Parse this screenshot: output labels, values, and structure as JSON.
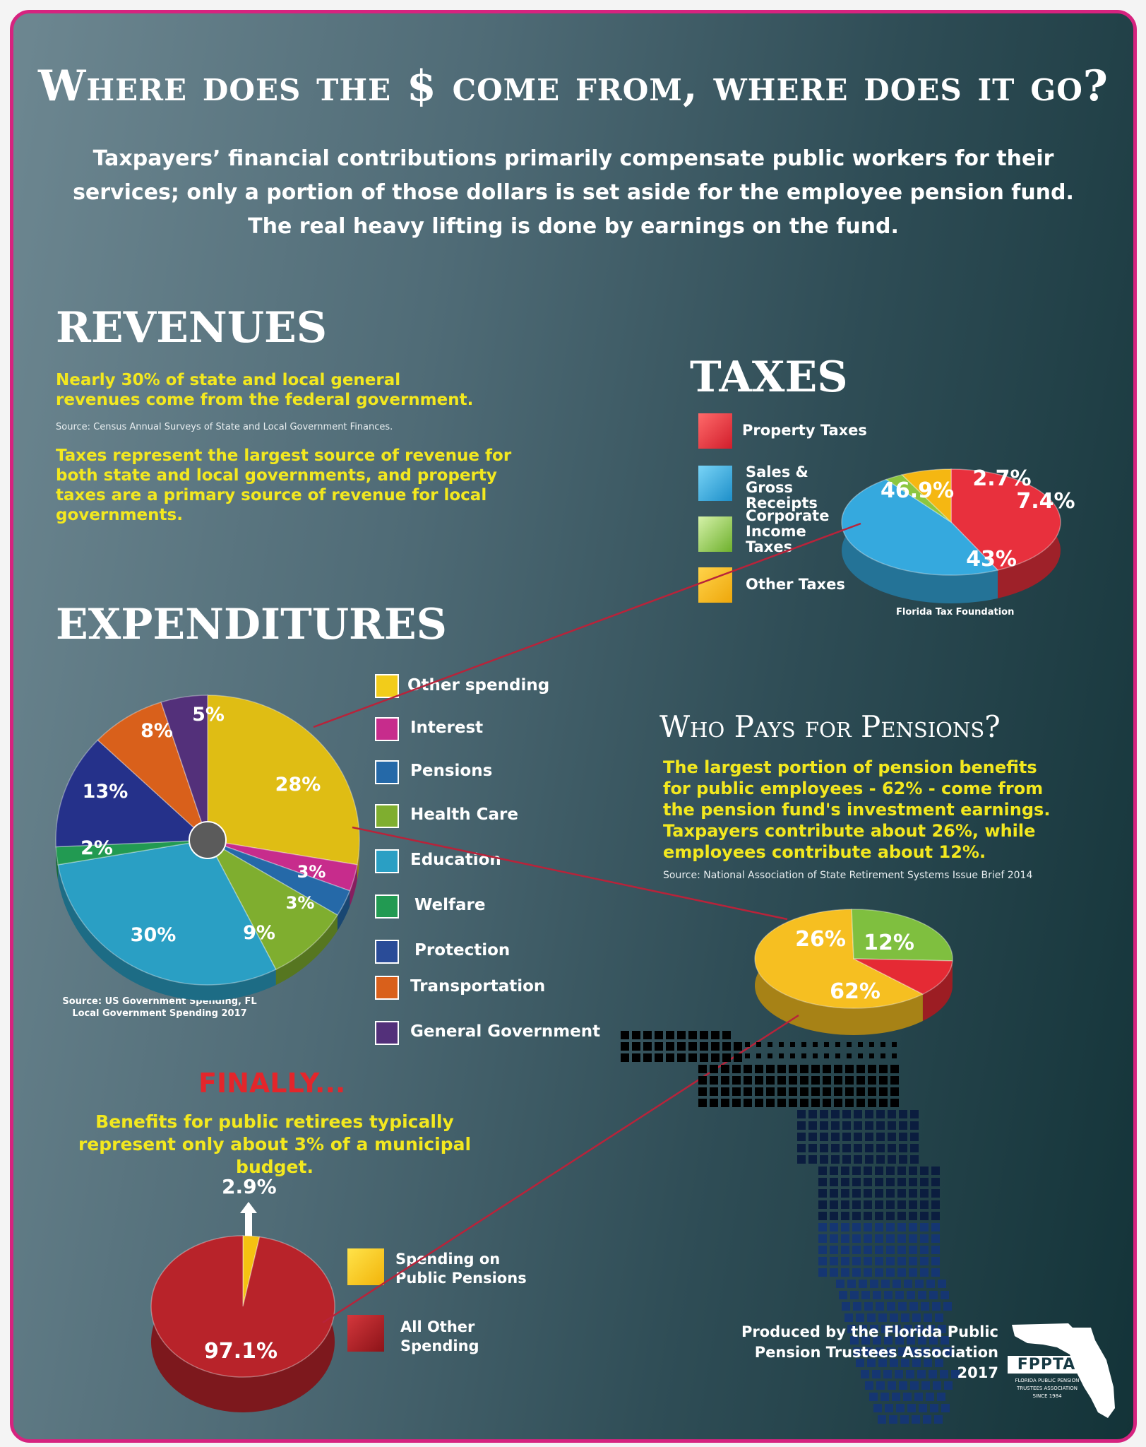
{
  "header": {
    "title": "Where does the $ come from, where does it go?",
    "intro": "Taxpayers’ financial contributions primarily compensate public workers for their services; only a portion of those dollars is set aside for the employee pension fund. The real heavy lifting is done by earnings on the fund."
  },
  "revenues": {
    "title": "REVENUES",
    "fact1": "Nearly 30% of state and local general revenues come from the federal government.",
    "source1": "Source: Census Annual Surveys of State and Local Government Finances.",
    "fact2": "Taxes represent the largest source of revenue for both state and local governments, and property taxes are a primary source of revenue for local governments."
  },
  "taxes": {
    "title": "TAXES",
    "source": "Florida Tax Foundation"
  },
  "expenditures": {
    "title": "EXPENDITURES",
    "source_label": "Source:",
    "source_rest": "US Government Spending, FL Local Government Spending 2017"
  },
  "pensions": {
    "title": "Who Pays for Pensions?",
    "fact": "The largest portion of pension benefits for public employees - 62% - come from the pension fund's investment earnings. Taxpayers contribute about 26%, while employees contribute about 12%.",
    "source": "Source: National Association of State Retirement Systems Issue Brief 2014"
  },
  "finally": {
    "heading": "FINALLY...",
    "fact": "Benefits for public retirees typically represent only about 3% of a municipal budget.",
    "callout": "2.9%"
  },
  "footer": {
    "produced_by": "Produced by the Florida Public Pension Trustees Association 2017",
    "logo_text": "FPPTA",
    "logo_sub1": "FLORIDA PUBLIC PENSION",
    "logo_sub2": "TRUSTEES ASSOCIATION",
    "logo_sub3": "SINCE 1984"
  },
  "colors": {
    "border": "#d6237f",
    "highlight_text": "#f3e81f",
    "finally_red": "#e3262b"
  },
  "chart_data": [
    {
      "id": "taxes",
      "type": "pie",
      "slices": [
        {
          "label": "Property Taxes",
          "value": 43,
          "display": "43%",
          "color": "#e8303d"
        },
        {
          "label": "Sales & Gross Receipts",
          "value": 46.9,
          "display": "46.9%",
          "color": "#35a9de"
        },
        {
          "label": "Corporate Income Taxes",
          "value": 2.7,
          "display": "2.7%",
          "color": "#8cc63f"
        },
        {
          "label": "Other Taxes",
          "value": 7.4,
          "display": "7.4%",
          "color": "#f5b712"
        }
      ]
    },
    {
      "id": "expenditures",
      "type": "pie",
      "slices": [
        {
          "label": "Other spending",
          "value": 28,
          "display": "28%",
          "color": "#dfbd14"
        },
        {
          "label": "Interest",
          "value": 3,
          "display": "3%",
          "color": "#c72c8c"
        },
        {
          "label": "Pensions",
          "value": 3,
          "display": "3%",
          "color": "#2569a8"
        },
        {
          "label": "Health Care",
          "value": 9,
          "display": "9%",
          "color": "#7fae2f"
        },
        {
          "label": "Education",
          "value": 30,
          "display": "30%",
          "color": "#2a9fc4"
        },
        {
          "label": "Welfare",
          "value": 2,
          "display": "2%",
          "color": "#229a52"
        },
        {
          "label": "Protection",
          "value": 13,
          "display": "13%",
          "color": "#25318a"
        },
        {
          "label": "Transportation",
          "value": 8,
          "display": "8%",
          "color": "#d9601b"
        },
        {
          "label": "General Government",
          "value": 5,
          "display": "5%",
          "color": "#53307a"
        }
      ]
    },
    {
      "id": "pension_sources",
      "type": "pie",
      "slices": [
        {
          "label": "Investment earnings",
          "value": 62,
          "display": "62%",
          "color": "#f6bf21"
        },
        {
          "label": "Taxpayers",
          "value": 26,
          "display": "26%",
          "color": "#7fbf3f"
        },
        {
          "label": "Employees",
          "value": 12,
          "display": "12%",
          "color": "#e52a34"
        }
      ]
    },
    {
      "id": "municipal_budget",
      "type": "pie",
      "slices": [
        {
          "label": "Spending on Public Pensions",
          "value": 2.9,
          "display": "2.9%",
          "color": "#f5c211"
        },
        {
          "label": "All Other Spending",
          "value": 97.1,
          "display": "97.1%",
          "color": "#b8232a"
        }
      ]
    }
  ]
}
